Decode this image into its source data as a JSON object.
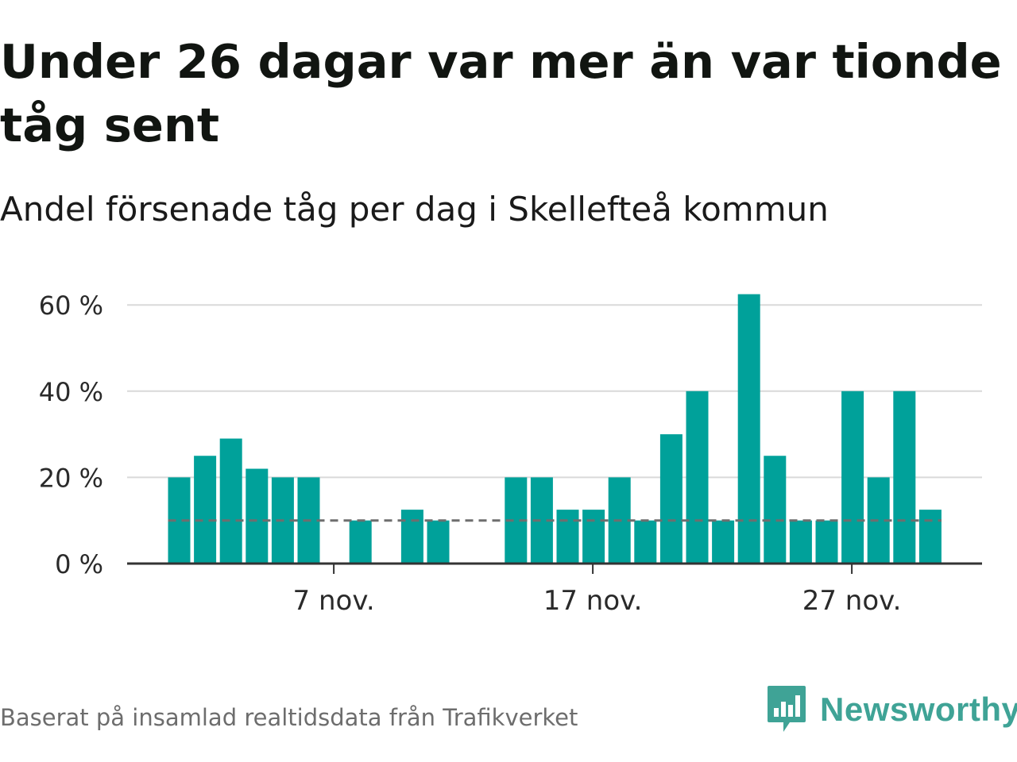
{
  "title": "Under 26 dagar var mer än var tionde tåg sent",
  "subtitle": "Andel försenade tåg per dag i Skellefteå kommun",
  "source": "Baserat på insamlad realtidsdata från Trafikverket",
  "brand": {
    "name": "Newsworthy",
    "logo_icon": "newsworthy-chart-bubble-icon",
    "color": "#3fa396"
  },
  "colors": {
    "bar": "#00a19a",
    "reference_line": "#6e6e6e",
    "grid": "#d9d9d9",
    "axis": "#333333"
  },
  "chart_data": {
    "type": "bar",
    "title": "Under 26 dagar var mer än var tionde tåg sent",
    "subtitle": "Andel försenade tåg per dag i Skellefteå kommun",
    "xlabel": "",
    "ylabel": "",
    "unit": "%",
    "x_start_day": 1,
    "x_end_day": 30,
    "month_label": "nov.",
    "x_ticks": [
      {
        "day": 7,
        "label": "7 nov."
      },
      {
        "day": 17,
        "label": "17 nov."
      },
      {
        "day": 27,
        "label": "27 nov."
      }
    ],
    "y_ticks": [
      {
        "value": 0,
        "label": "0 %"
      },
      {
        "value": 20,
        "label": "20 %"
      },
      {
        "value": 40,
        "label": "40 %"
      },
      {
        "value": 60,
        "label": "60 %"
      }
    ],
    "ylim": [
      0,
      62
    ],
    "reference_line": {
      "value": 10,
      "style": "dashed"
    },
    "values": [
      20,
      25,
      29,
      22,
      20,
      20,
      0,
      10,
      0,
      12.5,
      10,
      0,
      0,
      20,
      20,
      12.5,
      12.5,
      20,
      10,
      30,
      40,
      10,
      62.5,
      25,
      10,
      10,
      40,
      20,
      40,
      12.5
    ],
    "grid": true,
    "legend": "none"
  }
}
